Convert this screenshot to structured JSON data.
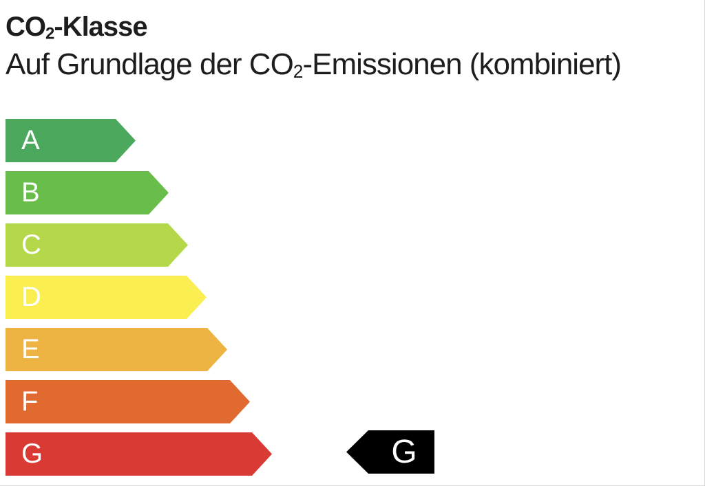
{
  "header": {
    "title": {
      "prefix": "CO",
      "subscript": "2",
      "suffix": "-Klasse"
    },
    "subtitle": {
      "prefix": "Auf Grundlage der CO",
      "subscript": "2",
      "suffix": "-Emissionen (kombiniert)"
    }
  },
  "chart_data": {
    "type": "bar",
    "title": "CO2-Klasse",
    "subtitle": "Auf Grundlage der CO2-Emissionen (kombiniert)",
    "orientation": "horizontal",
    "categories": [
      "A",
      "B",
      "C",
      "D",
      "E",
      "F",
      "G"
    ],
    "values": [
      189,
      237,
      265,
      292,
      322,
      355,
      387
    ],
    "values_note": "arrow lengths in px, ordinal scale A (shortest/best) to G (longest/worst)",
    "colors": [
      "#4CA85C",
      "#69BE4B",
      "#B5D84A",
      "#FBEE50",
      "#EDB443",
      "#E16A30",
      "#D93A34"
    ],
    "letter_color": "#FFFFFF",
    "selected_class": "G",
    "indicator": {
      "label": "G",
      "background": "#000000",
      "text_color": "#FFFFFF"
    },
    "legend": "off",
    "grid": "off"
  }
}
